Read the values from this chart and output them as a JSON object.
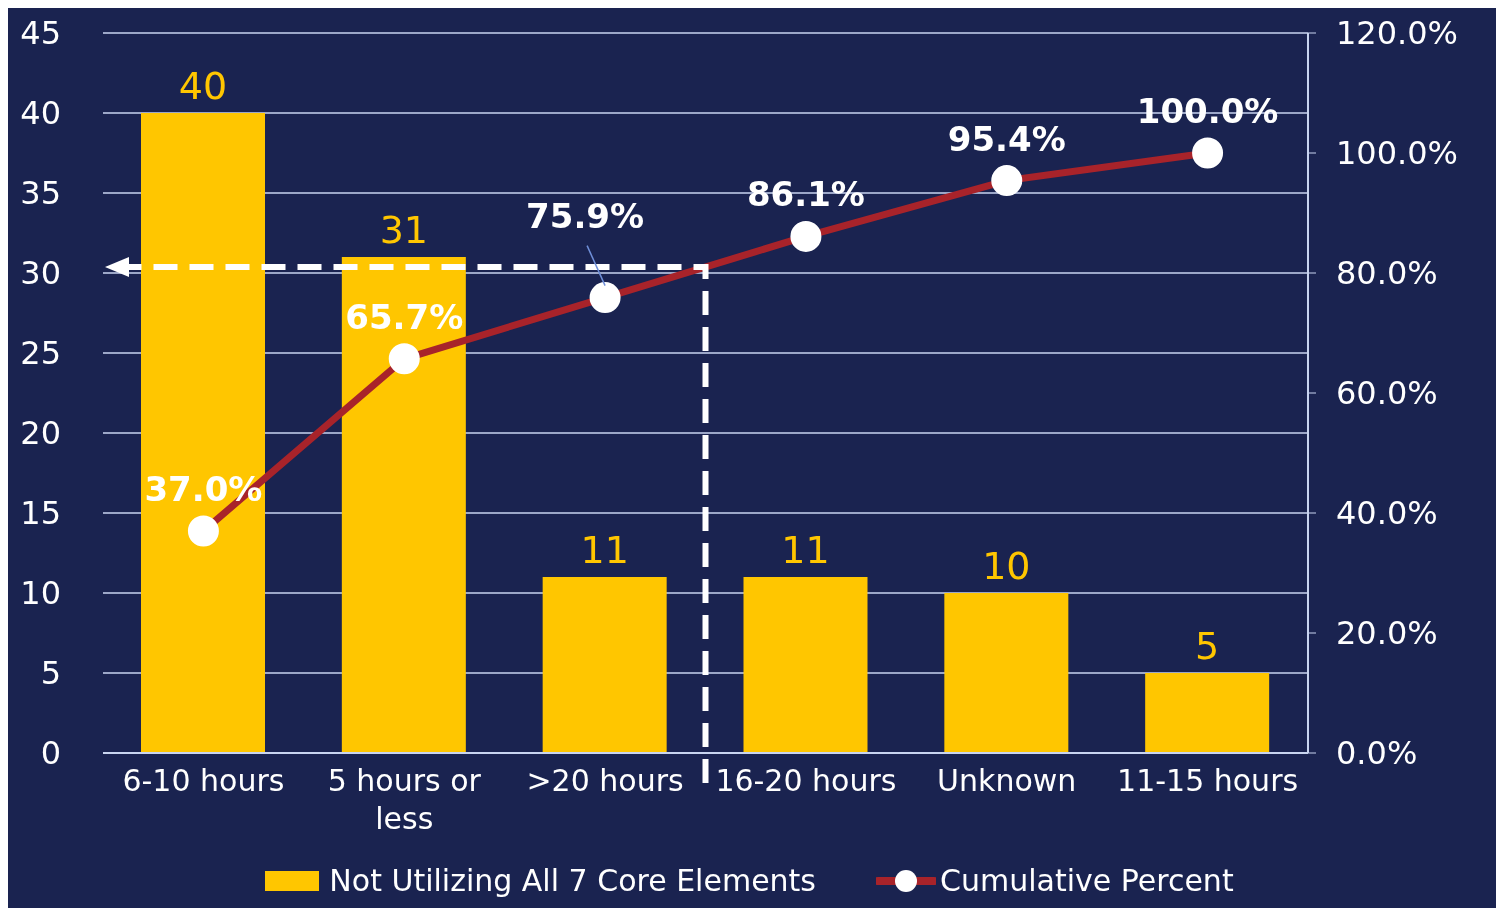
{
  "chart_data": {
    "type": "bar",
    "categories": [
      "6-10 hours",
      "5 hours or less",
      ">20 hours",
      "16-20 hours",
      "Unknown",
      "11-15 hours"
    ],
    "series": [
      {
        "name": "Not Utilizing All 7 Core Elements",
        "color": "#ffc600",
        "values": [
          40,
          31,
          11,
          11,
          10,
          5
        ],
        "value_labels": [
          "40",
          "31",
          "11",
          "11",
          "10",
          "5"
        ]
      },
      {
        "name": "Cumulative Percent",
        "type": "line",
        "axis": "y2",
        "color": "#a8232a",
        "marker": "circle",
        "values": [
          37.0,
          65.7,
          75.9,
          86.1,
          95.4,
          100.0
        ],
        "value_labels": [
          "37.0%",
          "65.7%",
          "75.9%",
          "86.1%",
          "95.4%",
          "100.0%"
        ]
      }
    ],
    "ylim": [
      0,
      45
    ],
    "yticks": [
      0,
      5,
      10,
      15,
      20,
      25,
      30,
      35,
      40,
      45
    ],
    "y2lim": [
      0,
      120
    ],
    "y2ticks": [
      {
        "value": 0,
        "label": "0.0%"
      },
      {
        "value": 20,
        "label": "20.0%"
      },
      {
        "value": 40,
        "label": "40.0%"
      },
      {
        "value": 60,
        "label": "60.0%"
      },
      {
        "value": 80,
        "label": "80.0%"
      },
      {
        "value": 100,
        "label": "100.0%"
      },
      {
        "value": 120,
        "label": "120.0%"
      }
    ],
    "ref_lines": [
      {
        "axis": "y2",
        "value": 81,
        "color": "#ffffff",
        "line_style": "dashed"
      }
    ],
    "grid": "y",
    "legend": "bottom"
  }
}
